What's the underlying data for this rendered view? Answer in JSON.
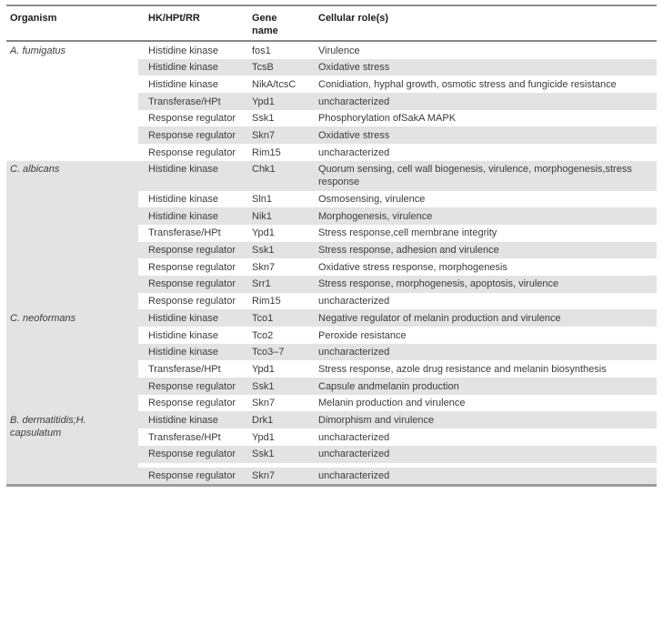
{
  "colors": {
    "row_shade": "#e3e3e3",
    "rule_dark": "#8f8f8f",
    "text": "#3b3b3b"
  },
  "table": {
    "headers": [
      "Organism",
      "HK/HPt/RR",
      "Gene\nname",
      "Cellular role(s)"
    ],
    "groups": [
      {
        "organism": "A. fumigatus",
        "organism_shaded": false,
        "rows": [
          {
            "hk": "Histidine kinase",
            "gene": "fos1",
            "role": "Virulence",
            "shaded": false
          },
          {
            "hk": "Histidine kinase",
            "gene": "TcsB",
            "role": "Oxidative stress",
            "shaded": true
          },
          {
            "hk": "Histidine kinase",
            "gene": "NikA/tcsC",
            "role": "Conidiation, hyphal growth, osmotic stress and fungicide resistance",
            "shaded": false
          },
          {
            "hk": "Transferase/HPt",
            "gene": "Ypd1",
            "role": "uncharacterized",
            "shaded": true
          },
          {
            "hk": "Response regulator",
            "gene": "Ssk1",
            "role": "Phosphorylation ofSakA MAPK",
            "shaded": false
          },
          {
            "hk": "Response regulator",
            "gene": "Skn7",
            "role": "Oxidative stress",
            "shaded": true
          },
          {
            "hk": "Response regulator",
            "gene": "Rim15",
            "role": "uncharacterized",
            "shaded": false
          }
        ]
      },
      {
        "organism": "C. albicans",
        "organism_shaded": true,
        "rows": [
          {
            "hk": "Histidine kinase",
            "gene": "Chk1",
            "role": "Quorum sensing, cell wall biogenesis, virulence, morphogenesis,stress response",
            "shaded": true
          },
          {
            "hk": "Histidine kinase",
            "gene": "Sln1",
            "role": "Osmosensing, virulence",
            "shaded": false
          },
          {
            "hk": "Histidine kinase",
            "gene": "Nik1",
            "role": "Morphogenesis, virulence",
            "shaded": true
          },
          {
            "hk": "Transferase/HPt",
            "gene": "Ypd1",
            "role": "Stress response,cell membrane integrity",
            "shaded": false
          },
          {
            "hk": "Response regulator",
            "gene": "Ssk1",
            "role": "Stress response, adhesion and virulence",
            "shaded": true
          },
          {
            "hk": "Response regulator",
            "gene": "Skn7",
            "role": "Oxidative stress response, morphogenesis",
            "shaded": false
          },
          {
            "hk": "Response regulator",
            "gene": "Srr1",
            "role": "Stress response, morphogenesis, apoptosis, virulence",
            "shaded": true
          },
          {
            "hk": "Response regulator",
            "gene": "Rim15",
            "role": "uncharacterized",
            "shaded": false
          }
        ]
      },
      {
        "organism": "C. neoformans",
        "organism_shaded": true,
        "rows": [
          {
            "hk": "Histidine kinase",
            "gene": "Tco1",
            "role": "Negative regulator of melanin production and virulence",
            "shaded": true
          },
          {
            "hk": "Histidine kinase",
            "gene": "Tco2",
            "role": "Peroxide resistance",
            "shaded": false
          },
          {
            "hk": "Histidine kinase",
            "gene": "Tco3–7",
            "role": "uncharacterized",
            "shaded": true
          },
          {
            "hk": "Transferase/HPt",
            "gene": "Ypd1",
            "role": "Stress response, azole drug resistance and melanin biosynthesis",
            "shaded": false
          },
          {
            "hk": "Response regulator",
            "gene": "Ssk1",
            "role": "Capsule andmelanin production",
            "shaded": true
          },
          {
            "hk": "Response regulator",
            "gene": "Skn7",
            "role": "Melanin production and virulence",
            "shaded": false
          }
        ]
      },
      {
        "organism": "B. dermatitidis;H. capsulatum",
        "organism_shaded": true,
        "rows": [
          {
            "hk": "Histidine kinase",
            "gene": "Drk1",
            "role": "Dimorphism and virulence",
            "shaded": true
          },
          {
            "hk": "Transferase/HPt",
            "gene": "Ypd1",
            "role": "uncharacterized",
            "shaded": false
          },
          {
            "hk": "Response regulator",
            "gene": "Ssk1",
            "role": "uncharacterized",
            "shaded": true
          },
          {
            "hk": "Response regulator",
            "gene": "Skn7",
            "role": "uncharacterized",
            "shaded": true,
            "gap_above": true
          }
        ]
      }
    ]
  }
}
